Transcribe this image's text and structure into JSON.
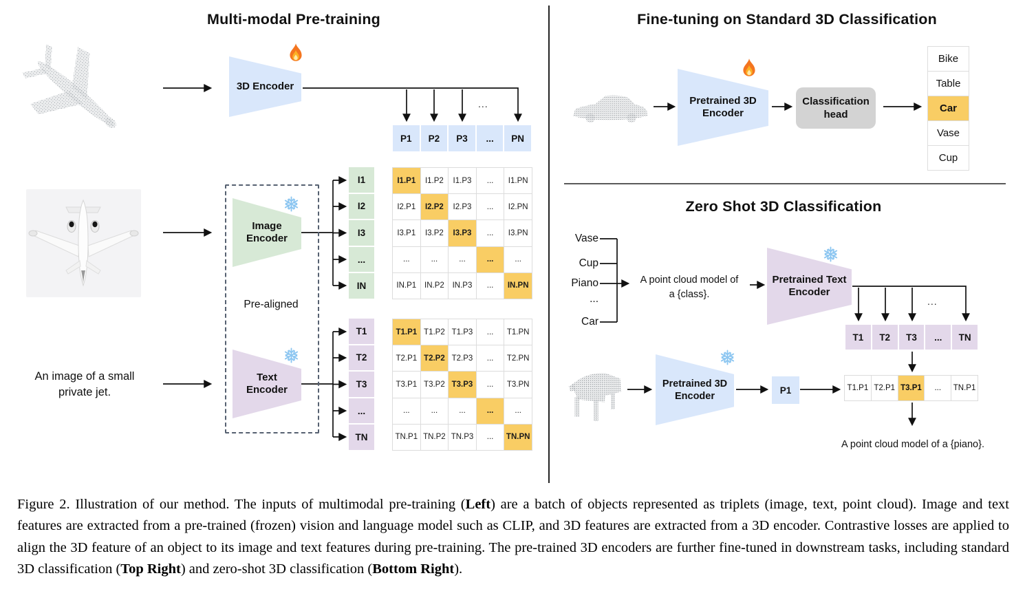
{
  "colors": {
    "encoder_blue": "#d9e7fb",
    "image_green": "#d7e9d6",
    "text_purple": "#e3d8ea",
    "highlight_orange": "#f9cd64",
    "head_gray": "#d3d3d3"
  },
  "icons": {
    "trainable": "fire-icon",
    "frozen": "snowflake-icon"
  },
  "left_panel": {
    "title": "Multi-modal Pre-training",
    "encoder_3d_label": "3D Encoder",
    "image_encoder_label": "Image\nEncoder",
    "text_encoder_label": "Text\nEncoder",
    "prealigned_label": "Pre-aligned",
    "input_caption": "An image of a small\nprivate jet.",
    "fan_ellipsis": "...",
    "p_row": [
      "P1",
      "P2",
      "P3",
      "...",
      "PN"
    ],
    "image_rows": [
      "I1",
      "I2",
      "I3",
      "...",
      "IN"
    ],
    "text_rows": [
      "T1",
      "T2",
      "T3",
      "...",
      "TN"
    ],
    "image_matrix": [
      [
        "I1.P1",
        "I1.P2",
        "I1.P3",
        "...",
        "I1.PN"
      ],
      [
        "I2.P1",
        "I2.P2",
        "I2.P3",
        "...",
        "I2.PN"
      ],
      [
        "I3.P1",
        "I3.P2",
        "I3.P3",
        "...",
        "I3.PN"
      ],
      [
        "...",
        "...",
        "...",
        "...",
        "..."
      ],
      [
        "IN.P1",
        "IN.P2",
        "IN.P3",
        "...",
        "IN.PN"
      ]
    ],
    "text_matrix": [
      [
        "T1.P1",
        "T1.P2",
        "T1.P3",
        "...",
        "T1.PN"
      ],
      [
        "T2.P1",
        "T2.P2",
        "T2.P3",
        "...",
        "T2.PN"
      ],
      [
        "T3.P1",
        "T3.P2",
        "T3.P3",
        "...",
        "T3.PN"
      ],
      [
        "...",
        "...",
        "...",
        "...",
        "..."
      ],
      [
        "TN.P1",
        "TN.P2",
        "TN.P3",
        "...",
        "TN.PN"
      ]
    ]
  },
  "top_right_panel": {
    "title": "Fine-tuning on Standard 3D Classification",
    "encoder_label": "Pretrained 3D\nEncoder",
    "head_label": "Classification\nhead",
    "classes": [
      "Bike",
      "Table",
      "Car",
      "Vase",
      "Cup"
    ],
    "predicted_class": "Car"
  },
  "bottom_right_panel": {
    "title": "Zero Shot 3D Classification",
    "class_list": [
      "Vase",
      "Cup",
      "Piano",
      "...",
      "Car"
    ],
    "prompt_text": "A point cloud model of\na {class}.",
    "text_encoder_label": "Pretrained Text\nEncoder",
    "encoder_label": "Pretrained 3D\nEncoder",
    "p1_label": "P1",
    "fan_ellipsis": "...",
    "t_row": [
      "T1",
      "T2",
      "T3",
      "...",
      "TN"
    ],
    "similarity_row": [
      "T1.P1",
      "T2.P1",
      "T3.P1",
      "...",
      "TN.P1"
    ],
    "matched_cell": "T3.P1",
    "result_text": "A point cloud model of a {piano}."
  },
  "caption": {
    "segments": [
      {
        "text": "Figure 2. Illustration of our method. The inputs of multimodal pre-training (",
        "bold": false
      },
      {
        "text": "Left",
        "bold": true
      },
      {
        "text": ") are a batch of objects represented as triplets (image, text, point cloud). Image and text features are extracted from a pre-trained (frozen) vision and language model such as CLIP, and 3D features are extracted from a 3D encoder. Contrastive losses are applied to align the 3D feature of an object to its image and text features during pre-training. The pre-trained 3D encoders are further fine-tuned in downstream tasks, including standard 3D classification (",
        "bold": false
      },
      {
        "text": "Top Right",
        "bold": true
      },
      {
        "text": ") and zero-shot 3D classification (",
        "bold": false
      },
      {
        "text": "Bottom Right",
        "bold": true
      },
      {
        "text": ").",
        "bold": false
      }
    ]
  }
}
